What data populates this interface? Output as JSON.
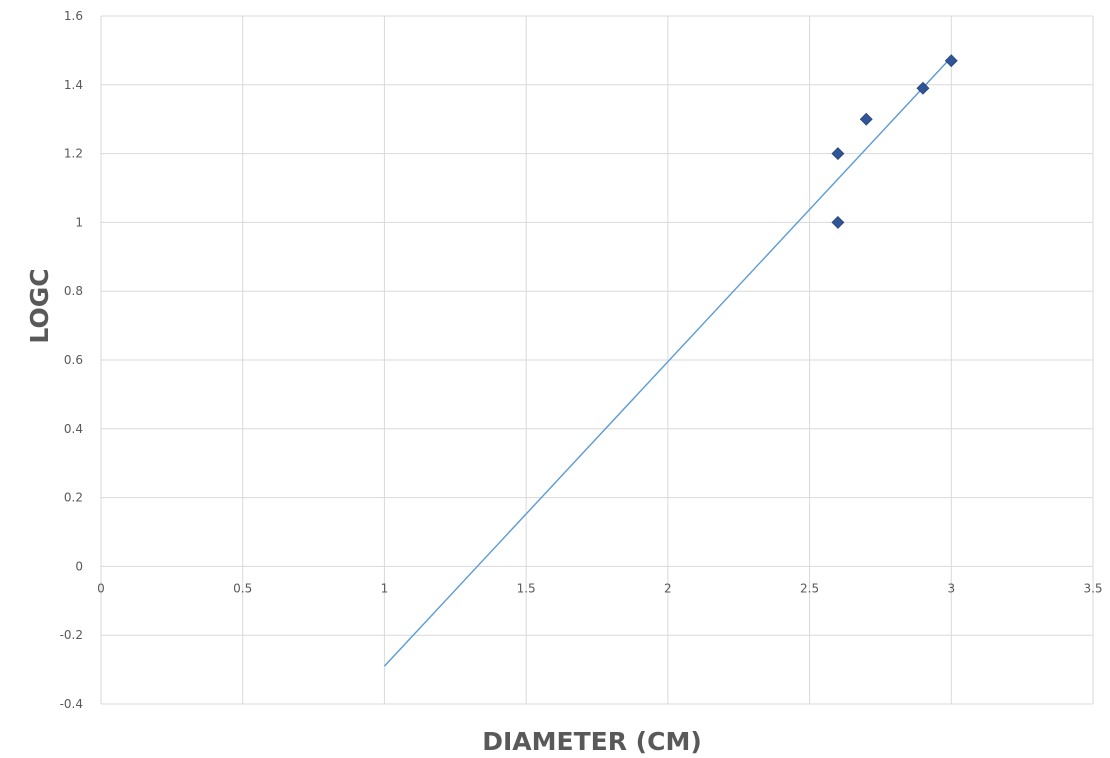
{
  "chart_data": {
    "type": "scatter",
    "title": "",
    "xlabel": "DIAMETER (CM)",
    "ylabel": "LOGC",
    "xlim": [
      0,
      3.5
    ],
    "ylim": [
      -0.4,
      1.6
    ],
    "x_ticks": [
      "0",
      "0.5",
      "1",
      "1.5",
      "2",
      "2.5",
      "3",
      "3.5"
    ],
    "y_ticks": [
      "-0.4",
      "-0.2",
      "0",
      "0.2",
      "0.4",
      "0.6",
      "0.8",
      "1",
      "1.2",
      "1.4",
      "1.6"
    ],
    "grid": true,
    "series": [
      {
        "marker": "diamond",
        "color": "#2f5597",
        "points": [
          {
            "x": 2.6,
            "y": 1.2
          },
          {
            "x": 2.6,
            "y": 1.0
          },
          {
            "x": 2.7,
            "y": 1.3
          },
          {
            "x": 2.9,
            "y": 1.39
          },
          {
            "x": 3.0,
            "y": 1.47
          }
        ]
      }
    ],
    "trendline": {
      "type": "linear",
      "color": "#5b9bd5",
      "x": [
        1.0,
        3.0
      ],
      "y": [
        -0.29,
        1.48
      ]
    }
  }
}
